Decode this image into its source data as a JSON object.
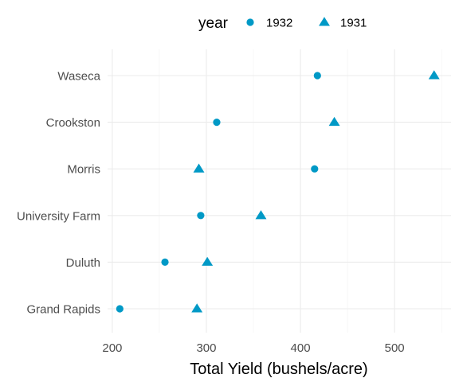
{
  "chart_data": {
    "type": "scatter",
    "title": "",
    "xlabel": "Total Yield (bushels/acre)",
    "ylabel": "",
    "xlim": [
      195,
      560
    ],
    "x_ticks": [
      200,
      300,
      400,
      500
    ],
    "categories": [
      "Grand Rapids",
      "Duluth",
      "University Farm",
      "Morris",
      "Crookston",
      "Waseca"
    ],
    "legend": {
      "title": "year",
      "position": "top"
    },
    "grid": true,
    "series": [
      {
        "name": "1932",
        "shape": "circle",
        "color": "#0099c6",
        "values": [
          208,
          256,
          294,
          415,
          311,
          418
        ]
      },
      {
        "name": "1931",
        "shape": "triangle",
        "color": "#0099c6",
        "values": [
          290,
          301,
          358,
          292,
          436,
          542
        ]
      }
    ]
  }
}
